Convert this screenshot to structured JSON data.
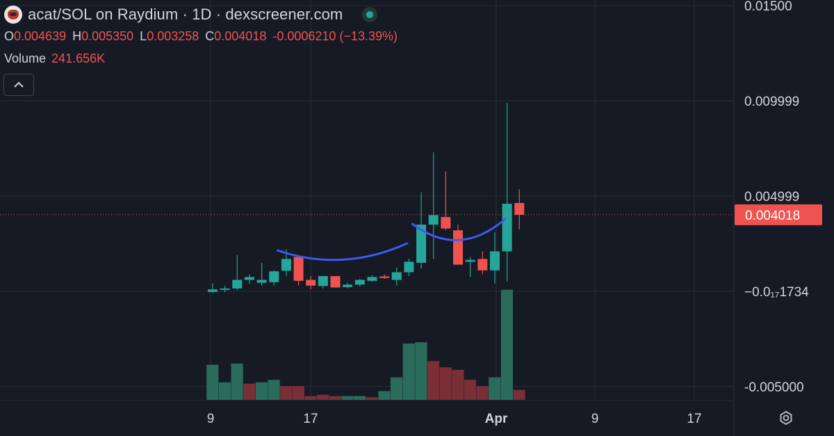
{
  "header": {
    "title": "acat/SOL on Raydium · 1D · dexscreener.com",
    "ohlc": {
      "o_label": "O",
      "o": "0.004639",
      "h_label": "H",
      "h": "0.005350",
      "l_label": "L",
      "l": "0.003258",
      "c_label": "C",
      "c": "0.004018",
      "change": "-0.0006210 (−13.39%)"
    },
    "volume_label": "Volume",
    "volume_value": "241.656K"
  },
  "icons": {
    "logo": "acat-logo-icon",
    "status": "live-status-icon",
    "collapse": "chevron-up-icon",
    "settings": "settings-gear-icon"
  },
  "colors": {
    "up": "#26a69a",
    "down": "#ef5350",
    "up_volume": "#2b6b5c",
    "down_volume": "#7a2e36",
    "annotation": "#3d5af1",
    "background": "#161a25",
    "grid": "#2a2e39"
  },
  "chart_data": {
    "type": "candlestick",
    "title": "acat/SOL on Raydium · 1D · dexscreener.com",
    "price_axis_ticks": [
      "0.01500",
      "0.009999",
      "0.004999",
      "−0.0₁₇1734",
      "-0.005000"
    ],
    "x_tick_labels": [
      "9",
      "17",
      "Apr",
      "9",
      "17"
    ],
    "last_price_label": "0.004018",
    "ylim": [
      -0.0057,
      0.0153
    ],
    "candles": [
      {
        "o": -3e-05,
        "h": 0.00042,
        "l": -8e-05,
        "c": 0.0001
      },
      {
        "o": 0.0001,
        "h": 0.0003,
        "l": -5e-05,
        "c": 0.00015
      },
      {
        "o": 0.00015,
        "h": 0.0019,
        "l": 5e-05,
        "c": 0.0006
      },
      {
        "o": 0.0006,
        "h": 0.0009,
        "l": 0.0004,
        "c": 0.00075
      },
      {
        "o": 0.00045,
        "h": 0.0015,
        "l": 0.0003,
        "c": 0.0006
      },
      {
        "o": 0.00048,
        "h": 0.0011,
        "l": 0.0003,
        "c": 0.00105
      },
      {
        "o": 0.00108,
        "h": 0.0022,
        "l": 0.0008,
        "c": 0.0017
      },
      {
        "o": 0.0018,
        "h": 0.0017,
        "l": 0.0003,
        "c": 0.00055
      },
      {
        "o": 0.0006,
        "h": 0.0008,
        "l": 0.0001,
        "c": 0.0003
      },
      {
        "o": 0.00028,
        "h": 0.0008,
        "l": 0.00015,
        "c": 0.0008
      },
      {
        "o": 0.0008,
        "h": 0.0008,
        "l": 0.0002,
        "c": 0.0002
      },
      {
        "o": 0.00022,
        "h": 0.00045,
        "l": 0.00015,
        "c": 0.00035
      },
      {
        "o": 0.00035,
        "h": 0.00065,
        "l": 0.00025,
        "c": 0.0006
      },
      {
        "o": 0.00055,
        "h": 0.00085,
        "l": 0.0005,
        "c": 0.00075
      },
      {
        "o": 0.00078,
        "h": 0.00088,
        "l": 0.00065,
        "c": 0.0007
      },
      {
        "o": 0.0006,
        "h": 0.00125,
        "l": 0.0003,
        "c": 0.001
      },
      {
        "o": 0.001,
        "h": 0.0017,
        "l": 0.0008,
        "c": 0.00155
      },
      {
        "o": 0.0015,
        "h": 0.0052,
        "l": 0.0012,
        "c": 0.0035
      },
      {
        "o": 0.0035,
        "h": 0.0073,
        "l": 0.0017,
        "c": 0.004
      },
      {
        "o": 0.0039,
        "h": 0.0063,
        "l": 0.0032,
        "c": 0.0033
      },
      {
        "o": 0.0032,
        "h": 0.0035,
        "l": 0.0014,
        "c": 0.0014
      },
      {
        "o": 0.00155,
        "h": 0.0018,
        "l": 0.00075,
        "c": 0.00165
      },
      {
        "o": 0.0017,
        "h": 0.0021,
        "l": 0.0009,
        "c": 0.0011
      },
      {
        "o": 0.0011,
        "h": 0.0031,
        "l": 0.0004,
        "c": 0.0021
      },
      {
        "o": 0.0021,
        "h": 0.0099,
        "l": 0.0005,
        "c": 0.0046
      },
      {
        "o": 0.004639,
        "h": 0.00535,
        "l": 0.003258,
        "c": 0.004018
      }
    ],
    "volume_ylim": [
      0,
      10
    ],
    "volume": [
      2.8,
      1.4,
      2.9,
      1.3,
      1.4,
      1.6,
      1.1,
      1.1,
      0.3,
      0.4,
      0.3,
      0.3,
      0.3,
      0.2,
      0.7,
      1.8,
      4.5,
      4.6,
      3.1,
      2.6,
      2.4,
      1.6,
      1.1,
      1.8,
      8.8,
      0.8
    ],
    "volume_direction": [
      "up",
      "up",
      "up",
      "down",
      "up",
      "up",
      "down",
      "down",
      "down",
      "down",
      "down",
      "up",
      "up",
      "down",
      "up",
      "up",
      "up",
      "up",
      "down",
      "down",
      "down",
      "down",
      "down",
      "up",
      "up",
      "down"
    ],
    "annotations": [
      {
        "type": "curve",
        "from_index": 5,
        "to_index": 15,
        "description_hidden": true
      },
      {
        "type": "curve",
        "from_index": 16,
        "to_index": 23,
        "description_hidden": true
      }
    ]
  }
}
